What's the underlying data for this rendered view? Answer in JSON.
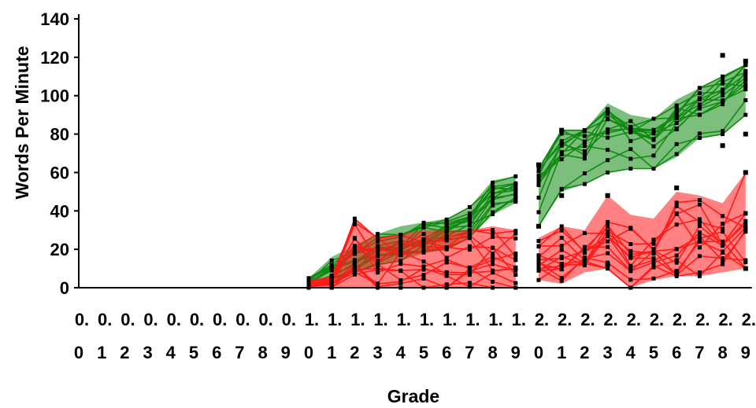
{
  "chart_data": {
    "type": "line",
    "title": "",
    "xlabel": "Grade",
    "ylabel": "Words Per Minute",
    "ylim": [
      0,
      140
    ],
    "yticks": [
      0,
      20,
      40,
      60,
      80,
      100,
      120,
      140
    ],
    "x": [
      "0.0",
      "0.1",
      "0.2",
      "0.3",
      "0.4",
      "0.5",
      "0.6",
      "0.7",
      "0.8",
      "0.9",
      "1.0",
      "1.1",
      "1.2",
      "1.3",
      "1.4",
      "1.5",
      "1.6",
      "1.7",
      "1.8",
      "1.9",
      "2.0",
      "2.1",
      "2.2",
      "2.3",
      "2.4",
      "2.5",
      "2.6",
      "2.7",
      "2.8",
      "2.9"
    ],
    "tick_rows": {
      "top": [
        "0.",
        "0.",
        "0.",
        "0.",
        "0.",
        "0.",
        "0.",
        "0.",
        "0.",
        "0.",
        "1.",
        "1.",
        "1.",
        "1.",
        "1.",
        "1.",
        "1.",
        "1.",
        "1.",
        "1.",
        "2.",
        "2.",
        "2.",
        "2.",
        "2.",
        "2.",
        "2.",
        "2.",
        "2.",
        "2."
      ],
      "bottom": [
        "0",
        "1",
        "2",
        "3",
        "4",
        "5",
        "6",
        "7",
        "8",
        "9",
        "0",
        "1",
        "2",
        "3",
        "4",
        "5",
        "6",
        "7",
        "8",
        "9",
        "0",
        "1",
        "2",
        "3",
        "4",
        "5",
        "6",
        "7",
        "8",
        "9"
      ]
    },
    "grid": false,
    "legend": "none",
    "colors": {
      "high": "#118a11",
      "low": "#ff1a1a",
      "marker": "#000000",
      "axis": "#000000"
    },
    "series_groups": [
      {
        "group": "high",
        "gap_after_index": 19,
        "band_low": [
          null,
          null,
          null,
          null,
          null,
          null,
          null,
          null,
          null,
          null,
          0,
          2,
          8,
          12,
          14,
          18,
          20,
          26,
          38,
          44,
          32,
          50,
          54,
          60,
          62,
          62,
          68,
          78,
          80,
          90
        ],
        "band_high": [
          null,
          null,
          null,
          null,
          null,
          null,
          null,
          null,
          null,
          null,
          5,
          16,
          22,
          28,
          32,
          34,
          36,
          42,
          56,
          58,
          62,
          82,
          82,
          96,
          90,
          88,
          98,
          104,
          110,
          116
        ],
        "extremes": {
          "2.0": [
            32,
            64
          ],
          "2.1": [
            48,
            82
          ],
          "2.8": [
            74,
            121
          ],
          "2.9": [
            80,
            118
          ]
        }
      },
      {
        "group": "low",
        "gap_after_index": 19,
        "band_low": [
          null,
          null,
          null,
          null,
          null,
          null,
          null,
          null,
          null,
          null,
          0,
          0,
          0,
          0,
          0,
          0,
          0,
          0,
          0,
          0,
          4,
          2,
          8,
          10,
          0,
          4,
          6,
          6,
          8,
          10
        ],
        "band_high": [
          null,
          null,
          null,
          null,
          null,
          null,
          null,
          null,
          null,
          null,
          4,
          6,
          36,
          26,
          28,
          30,
          30,
          30,
          32,
          30,
          26,
          32,
          30,
          48,
          38,
          36,
          50,
          48,
          44,
          60
        ],
        "extremes": {
          "2.3": [
            12,
            48
          ],
          "2.6": [
            8,
            52
          ],
          "2.9": [
            10,
            60
          ]
        }
      }
    ]
  }
}
